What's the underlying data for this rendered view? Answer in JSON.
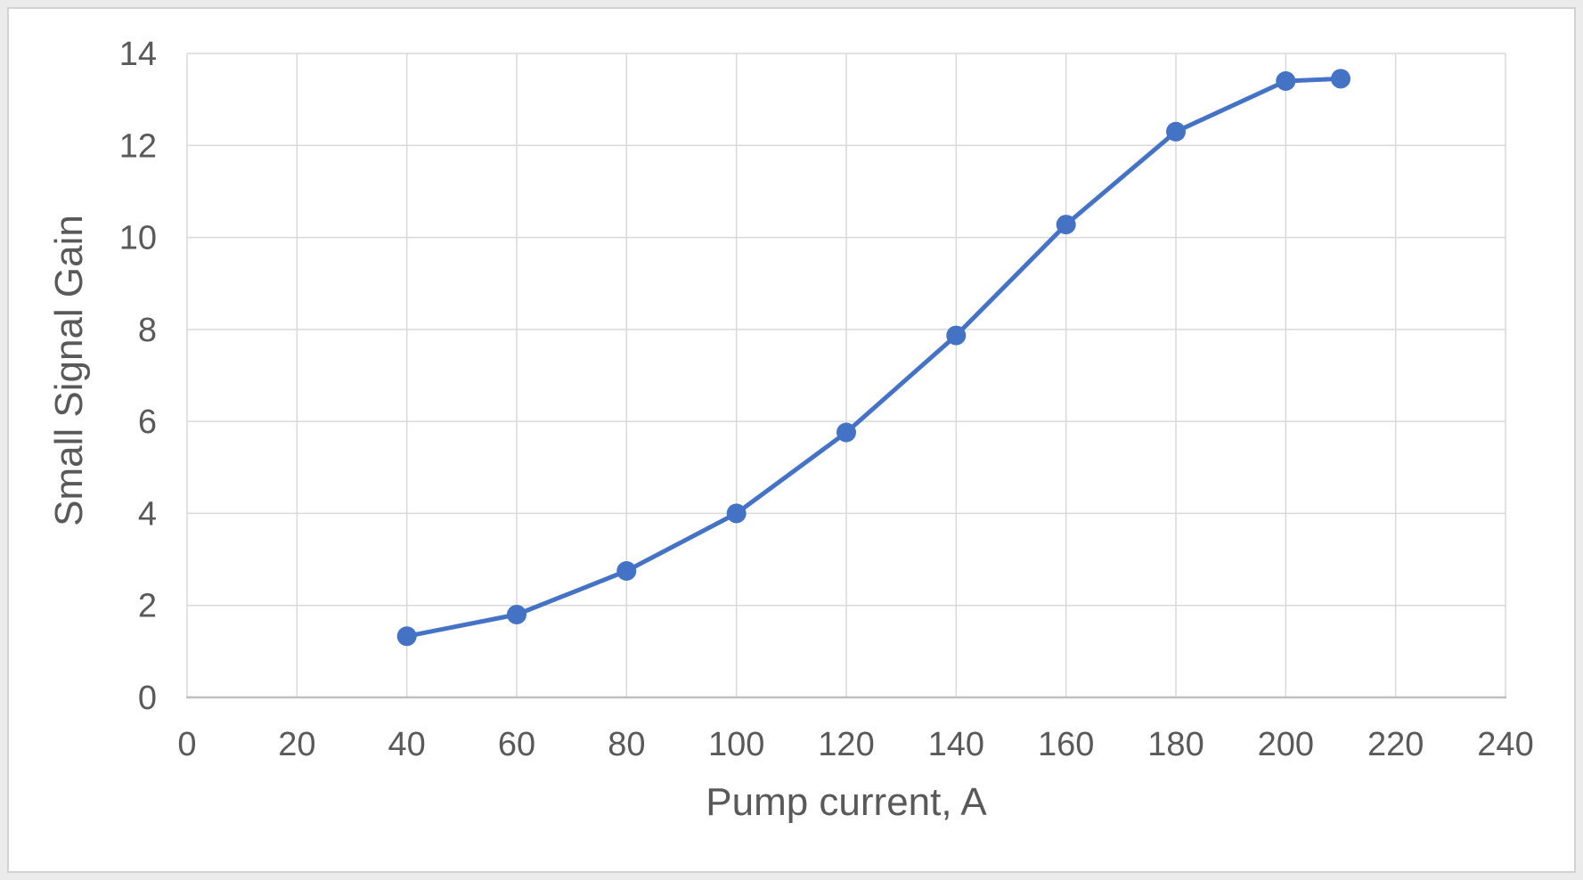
{
  "window": {
    "background_color": "#ebebeb",
    "chart_background_color": "#ffffff",
    "frame_border_color": "#d2d2d2"
  },
  "chart_data": {
    "type": "line",
    "title": "",
    "xlabel": "Pump current, A",
    "ylabel": "Small Signal Gain",
    "series": [
      {
        "name": "Small Signal Gain",
        "x": [
          40,
          60,
          80,
          100,
          120,
          140,
          160,
          180,
          200,
          210
        ],
        "y": [
          1.33,
          1.8,
          2.75,
          4.0,
          5.76,
          7.87,
          10.28,
          12.3,
          13.4,
          13.45
        ]
      }
    ],
    "xlim": [
      0,
      240
    ],
    "ylim": [
      0,
      14
    ],
    "x_ticks": [
      0,
      20,
      40,
      60,
      80,
      100,
      120,
      140,
      160,
      180,
      200,
      220,
      240
    ],
    "y_ticks": [
      0,
      2,
      4,
      6,
      8,
      10,
      12,
      14
    ],
    "grid": true,
    "legend_position": "none",
    "line_color": "#4472C4",
    "marker_color": "#4472C4",
    "marker_shape": "circle",
    "gridline_color": "#D9D9D9",
    "axis_line_color": "#BFBFBF",
    "tick_label_color": "#595959",
    "axis_title_color": "#595959"
  }
}
